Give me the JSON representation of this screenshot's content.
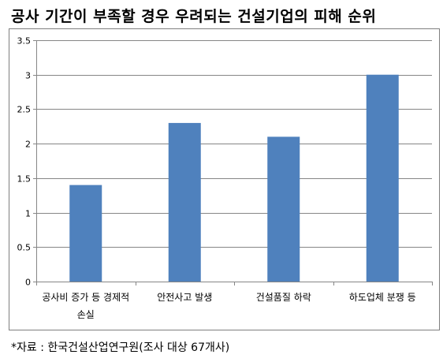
{
  "title": "공사 기간이 부족할 경우 우려되는 건설기업의 피해 순위",
  "source": "*자료 : 한국건설산업연구원(조사 대상 67개사)",
  "colors": {
    "bar": "#4f81bd",
    "grid": "#868686",
    "axis": "#868686",
    "frame": "#7f7f7f"
  },
  "chart_data": {
    "type": "bar",
    "title": "공사 기간이 부족할 경우 우려되는 건설기업의 피해 순위",
    "xlabel": "",
    "ylabel": "",
    "categories": [
      [
        "공사비 증가 등 경제적",
        "손실"
      ],
      [
        "안전사고 발생"
      ],
      [
        "건설품질 하락"
      ],
      [
        "하도업체 분쟁 등"
      ]
    ],
    "values": [
      1.4,
      2.3,
      2.1,
      3.0
    ],
    "ylim": [
      0,
      3.5
    ],
    "yticks": [
      "0",
      "0.5",
      "1",
      "1.5",
      "2",
      "2.5",
      "3",
      "3.5"
    ],
    "grid": true,
    "legend": "none"
  }
}
